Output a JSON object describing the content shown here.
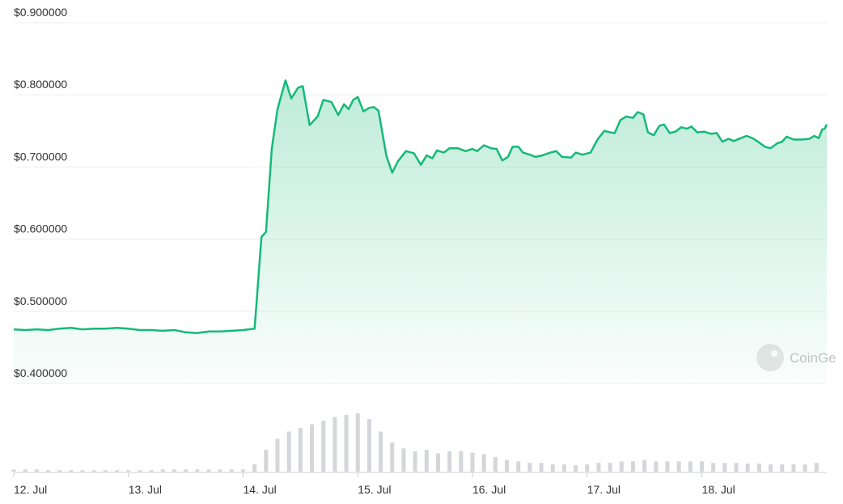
{
  "chart_data": {
    "type": "line",
    "color": "#16b979",
    "watermark": "CoinGe",
    "x": [
      0,
      0.1,
      0.2,
      0.3,
      0.4,
      0.5,
      0.6,
      0.7,
      0.8,
      0.9,
      1.0,
      1.1,
      1.2,
      1.3,
      1.4,
      1.5,
      1.6,
      1.7,
      1.8,
      1.9,
      2.0,
      2.1,
      2.16,
      2.2,
      2.25,
      2.3,
      2.37,
      2.42,
      2.48,
      2.52,
      2.58,
      2.65,
      2.7,
      2.77,
      2.83,
      2.88,
      2.92,
      2.96,
      3.0,
      3.05,
      3.1,
      3.14,
      3.18,
      3.25,
      3.3,
      3.35,
      3.42,
      3.49,
      3.55,
      3.6,
      3.65,
      3.69,
      3.75,
      3.8,
      3.87,
      3.94,
      4.0,
      4.04,
      4.1,
      4.16,
      4.21,
      4.26,
      4.31,
      4.35,
      4.4,
      4.44,
      4.5,
      4.55,
      4.61,
      4.68,
      4.73,
      4.78,
      4.86,
      4.9,
      4.96,
      5.03,
      5.09,
      5.15,
      5.2,
      5.24,
      5.29,
      5.34,
      5.4,
      5.44,
      5.49,
      5.53,
      5.58,
      5.63,
      5.67,
      5.72,
      5.77,
      5.82,
      5.87,
      5.91,
      5.96,
      6.02,
      6.08,
      6.13,
      6.18,
      6.23,
      6.28,
      6.34,
      6.39,
      6.44,
      6.49,
      6.55,
      6.6,
      6.66,
      6.7,
      6.74,
      6.8,
      6.87,
      6.94,
      6.98,
      7.02,
      7.05,
      7.07,
      7.09
    ],
    "values": [
      0.475,
      0.474,
      0.475,
      0.474,
      0.476,
      0.477,
      0.475,
      0.476,
      0.476,
      0.477,
      0.476,
      0.474,
      0.474,
      0.473,
      0.474,
      0.471,
      0.47,
      0.472,
      0.472,
      0.473,
      0.474,
      0.476,
      0.603,
      0.61,
      0.725,
      0.78,
      0.82,
      0.795,
      0.81,
      0.812,
      0.758,
      0.77,
      0.793,
      0.79,
      0.772,
      0.787,
      0.78,
      0.793,
      0.797,
      0.777,
      0.782,
      0.783,
      0.778,
      0.715,
      0.692,
      0.708,
      0.722,
      0.719,
      0.703,
      0.716,
      0.712,
      0.723,
      0.72,
      0.726,
      0.726,
      0.722,
      0.725,
      0.722,
      0.73,
      0.726,
      0.725,
      0.709,
      0.714,
      0.728,
      0.728,
      0.72,
      0.717,
      0.714,
      0.716,
      0.72,
      0.722,
      0.714,
      0.713,
      0.72,
      0.717,
      0.72,
      0.738,
      0.75,
      0.748,
      0.747,
      0.765,
      0.77,
      0.768,
      0.776,
      0.773,
      0.748,
      0.744,
      0.757,
      0.759,
      0.747,
      0.749,
      0.755,
      0.753,
      0.756,
      0.748,
      0.749,
      0.746,
      0.747,
      0.735,
      0.739,
      0.736,
      0.74,
      0.743,
      0.74,
      0.735,
      0.728,
      0.726,
      0.733,
      0.735,
      0.742,
      0.738,
      0.738,
      0.739,
      0.743,
      0.74,
      0.752,
      0.753,
      0.759
    ],
    "xlim": [
      0,
      7.09
    ],
    "xticks": [
      {
        "value": 0,
        "label": "12. Jul"
      },
      {
        "value": 1,
        "label": "13. Jul"
      },
      {
        "value": 2,
        "label": "14. Jul"
      },
      {
        "value": 3,
        "label": "15. Jul"
      },
      {
        "value": 4,
        "label": "16. Jul"
      },
      {
        "value": 5,
        "label": "17. Jul"
      },
      {
        "value": 6,
        "label": "18. Jul"
      }
    ],
    "ylim": [
      0.4,
      0.9
    ],
    "yticks": [
      {
        "value": 0.9,
        "label": "$0.900000"
      },
      {
        "value": 0.8,
        "label": "$0.800000"
      },
      {
        "value": 0.7,
        "label": "$0.700000"
      },
      {
        "value": 0.6,
        "label": "$0.600000"
      },
      {
        "value": 0.5,
        "label": "$0.500000"
      },
      {
        "value": 0.4,
        "label": "$0.400000"
      }
    ],
    "grid": true,
    "volume": {
      "color": "#d4d6da",
      "vlim": [
        0,
        100
      ],
      "x": [
        0,
        0.1,
        0.2,
        0.3,
        0.4,
        0.5,
        0.6,
        0.7,
        0.8,
        0.9,
        1.0,
        1.1,
        1.2,
        1.3,
        1.4,
        1.5,
        1.6,
        1.7,
        1.8,
        1.9,
        2.0,
        2.1,
        2.2,
        2.3,
        2.4,
        2.5,
        2.6,
        2.7,
        2.8,
        2.9,
        3.0,
        3.1,
        3.2,
        3.3,
        3.4,
        3.5,
        3.6,
        3.7,
        3.8,
        3.9,
        4.0,
        4.1,
        4.2,
        4.3,
        4.4,
        4.5,
        4.6,
        4.7,
        4.8,
        4.9,
        5.0,
        5.1,
        5.2,
        5.3,
        5.4,
        5.5,
        5.6,
        5.7,
        5.8,
        5.9,
        6.0,
        6.1,
        6.2,
        6.3,
        6.4,
        6.5,
        6.6,
        6.7,
        6.8,
        6.9,
        7.0
      ],
      "values": [
        3,
        3,
        3,
        2,
        2,
        2,
        2,
        2,
        2,
        2,
        2,
        2,
        2,
        3,
        3,
        3,
        3,
        3,
        3,
        3,
        3,
        10,
        30,
        45,
        55,
        60,
        65,
        70,
        75,
        78,
        80,
        72,
        55,
        40,
        32,
        28,
        30,
        25,
        28,
        28,
        26,
        24,
        20,
        16,
        14,
        12,
        12,
        10,
        10,
        9,
        10,
        12,
        12,
        14,
        14,
        16,
        14,
        14,
        14,
        14,
        14,
        12,
        12,
        12,
        11,
        11,
        10,
        10,
        10,
        10,
        12
      ]
    }
  }
}
